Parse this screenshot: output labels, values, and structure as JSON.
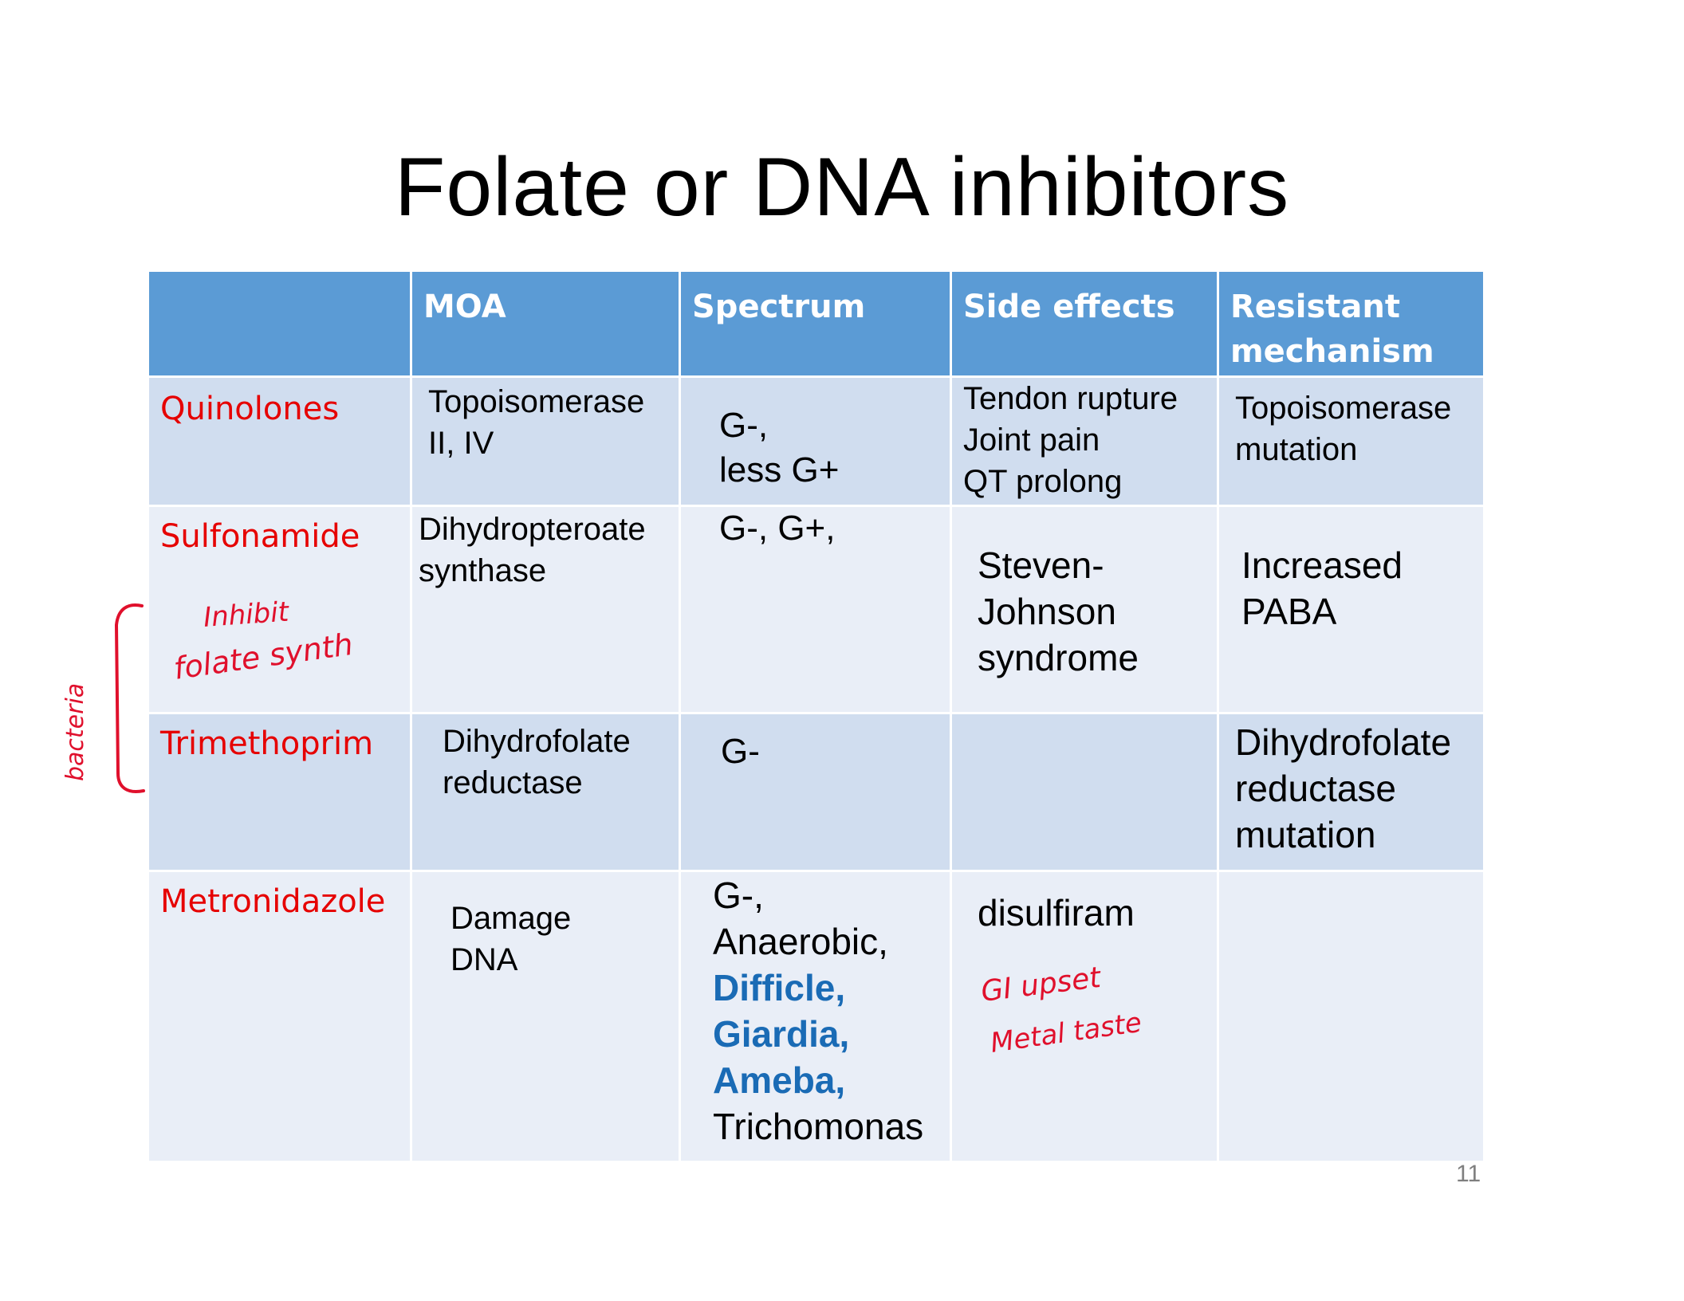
{
  "slide": {
    "title": "Folate or DNA inhibitors",
    "page_number": "11"
  },
  "table": {
    "headers": [
      "",
      "MOA",
      "Spectrum",
      "Side effects",
      "Resistant mechanism"
    ],
    "rows": [
      {
        "drug": "Quinolones",
        "moa": [
          "Topoisomerase",
          "II, IV"
        ],
        "spectrum": [
          "G-,",
          "less G+"
        ],
        "side_effects": [
          "Tendon rupture",
          "Joint pain",
          "QT prolong"
        ],
        "resistance": [
          "Topoisomerase",
          "mutation"
        ]
      },
      {
        "drug": "Sulfonamide",
        "moa": [
          "Dihydropteroate",
          "synthase"
        ],
        "spectrum": [
          "G-, G+,"
        ],
        "side_effects": [
          "Steven-",
          "Johnson",
          "syndrome"
        ],
        "resistance": [
          "Increased",
          "PABA"
        ]
      },
      {
        "drug": "Trimethoprim",
        "moa": [
          "Dihydrofolate",
          "reductase"
        ],
        "spectrum": [
          "G-"
        ],
        "side_effects": [],
        "resistance": [
          "Dihydrofolate",
          "reductase",
          "mutation"
        ]
      },
      {
        "drug": "Metronidazole",
        "moa": [
          "Damage",
          "DNA"
        ],
        "spectrum": [
          "G-,",
          "Anaerobic,",
          "Difficle,",
          "Giardia,",
          "Ameba,",
          "Trichomonas"
        ],
        "side_effects": [
          "disulfiram"
        ],
        "resistance": []
      }
    ]
  },
  "annotations": {
    "inhibit": "Inhibit",
    "folate_synth": "folate synth",
    "bacteria": "bacteria",
    "gi_upset": "GI upset",
    "metal_taste": "Metal taste",
    "ink_color": "#e0102c"
  },
  "colors": {
    "header_bg": "#5b9bd5",
    "row_band_dark": "#d0ddef",
    "row_band_light": "#e9eef7",
    "drug_name": "#e60000",
    "highlight_blue": "#1a6bb5"
  }
}
